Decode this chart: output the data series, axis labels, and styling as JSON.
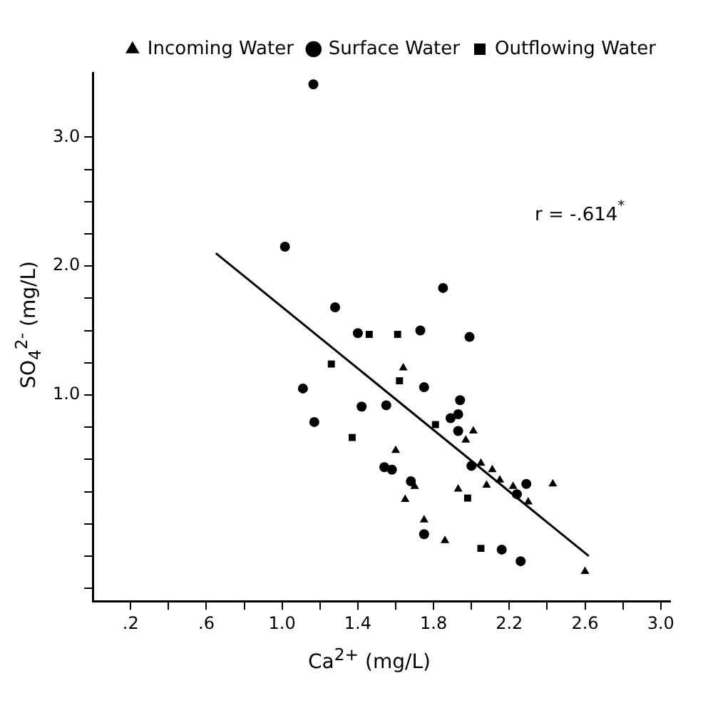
{
  "chart_data": {
    "type": "scatter",
    "xlabel": "Ca$^{2+}$ (mg/L)",
    "ylabel": "SO$_{4}$$^{2-}$ (mg/L)",
    "xlim": [
      0,
      3.05
    ],
    "ylim": [
      -0.6,
      3.5
    ],
    "xticks": [
      {
        "value": 0.2,
        "label": ".2"
      },
      {
        "value": 0.4,
        "label": null
      },
      {
        "value": 0.6,
        "label": ".6"
      },
      {
        "value": 0.8,
        "label": null
      },
      {
        "value": 1.0,
        "label": "1.0"
      },
      {
        "value": 1.2,
        "label": null
      },
      1.4,
      {
        "value": 1.6,
        "label": null
      },
      1.8,
      {
        "value": 2.0,
        "label": null
      },
      2.2,
      {
        "value": 2.4,
        "label": null
      },
      2.6,
      {
        "value": 2.8,
        "label": null
      },
      {
        "value": 3.0,
        "label": "3.0"
      }
    ],
    "yticks": [
      {
        "value": -0.5,
        "label": null
      },
      {
        "value": -0.25,
        "label": null
      },
      {
        "value": 0,
        "label": null
      },
      {
        "value": 0.25,
        "label": null
      },
      {
        "value": 0.5,
        "label": null
      },
      {
        "value": 0.75,
        "label": null
      },
      {
        "value": 1.0,
        "label": "1.0"
      },
      {
        "value": 1.25,
        "label": null
      },
      {
        "value": 1.5,
        "label": null
      },
      {
        "value": 1.75,
        "label": null
      },
      {
        "value": 2.0,
        "label": "2.0"
      },
      {
        "value": 2.25,
        "label": null
      },
      {
        "value": 2.5,
        "label": null
      },
      {
        "value": 2.75,
        "label": null
      },
      {
        "value": 3.0,
        "label": "3.0"
      }
    ],
    "grid": false,
    "legend": "top right",
    "annotations": [
      "r = -.614$^{*}$"
    ],
    "series": [
      {
        "name": "Incoming Water",
        "color": "#000000",
        "marker": "triangle",
        "x": [
          1.64,
          2.01,
          1.97,
          1.6,
          2.05,
          2.11,
          2.15,
          1.7,
          1.93,
          2.08,
          2.22,
          2.43,
          2.3,
          1.65,
          1.75,
          1.86,
          2.6
        ],
        "values": [
          1.21,
          0.72,
          0.65,
          0.57,
          0.47,
          0.42,
          0.34,
          0.29,
          0.27,
          0.3,
          0.29,
          0.31,
          0.17,
          0.19,
          0.03,
          -0.13,
          -0.37
        ]
      },
      {
        "name": "Surface Water",
        "color": "#000000",
        "marker": "circle",
        "x": [
          1.165,
          1.015,
          1.28,
          1.4,
          1.73,
          1.85,
          1.99,
          1.75,
          1.11,
          1.42,
          1.55,
          1.17,
          1.94,
          1.89,
          1.93,
          1.93,
          1.54,
          1.58,
          2.0,
          1.68,
          2.23,
          2.29,
          2.24,
          1.75,
          2.16,
          2.26
        ],
        "values": [
          3.41,
          2.15,
          1.68,
          1.48,
          1.5,
          1.83,
          1.45,
          1.06,
          1.05,
          0.91,
          0.92,
          0.79,
          0.96,
          0.82,
          0.85,
          0.72,
          0.44,
          0.42,
          0.45,
          0.33,
          null,
          0.31,
          0.23,
          -0.08,
          -0.2,
          -0.29
        ]
      },
      {
        "name": "Outflowing Water",
        "color": "#000000",
        "marker": "square",
        "x": [
          1.46,
          1.61,
          1.26,
          1.62,
          1.37,
          1.81,
          1.98,
          2.05
        ],
        "values": [
          1.47,
          1.47,
          1.24,
          1.11,
          0.67,
          0.77,
          0.2,
          -0.19
        ]
      },
      {
        "type": "line",
        "color": "#000000",
        "marker": "none",
        "line_style": "solid",
        "x": [
          0.65,
          2.62
        ],
        "values": [
          2.1,
          -0.25
        ]
      }
    ]
  }
}
